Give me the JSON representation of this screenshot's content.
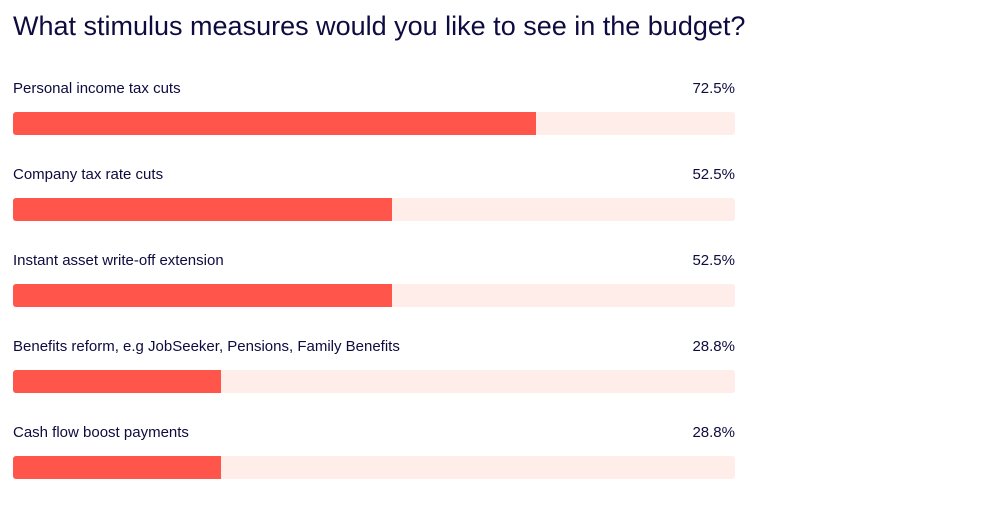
{
  "colors": {
    "bar_fill": "#ff554a",
    "bar_track": "#ffedea",
    "text": "#0d0b3f"
  },
  "chart_data": {
    "type": "bar",
    "orientation": "horizontal",
    "title": "What stimulus measures would you like to see in the budget?",
    "xlim": [
      0,
      100
    ],
    "grid": false,
    "categories": [
      "Personal income tax cuts",
      "Company tax rate cuts",
      "Instant asset write-off extension",
      "Benefits reform, e.g JobSeeker, Pensions, Family Benefits",
      "Cash flow boost payments"
    ],
    "values": [
      72.5,
      52.5,
      52.5,
      28.8,
      28.8
    ],
    "value_labels": [
      "72.5%",
      "52.5%",
      "52.5%",
      "28.8%",
      "28.8%"
    ]
  }
}
